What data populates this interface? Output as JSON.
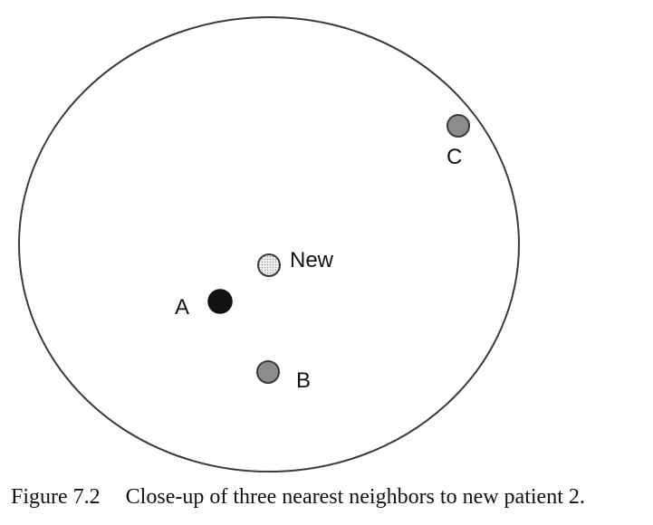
{
  "diagram": {
    "points": [
      {
        "id": "new",
        "label": "New",
        "fill": "#e6e6e6",
        "pattern": "dotted"
      },
      {
        "id": "a",
        "label": "A",
        "fill": "#111111"
      },
      {
        "id": "b",
        "label": "B",
        "fill": "#8c8c8c"
      },
      {
        "id": "c",
        "label": "C",
        "fill": "#8c8c8c"
      }
    ],
    "outline_color": "#3a3a3a"
  },
  "caption": {
    "figure_number": "Figure 7.2",
    "text": "Close-up of three nearest neighbors to new patient 2."
  }
}
